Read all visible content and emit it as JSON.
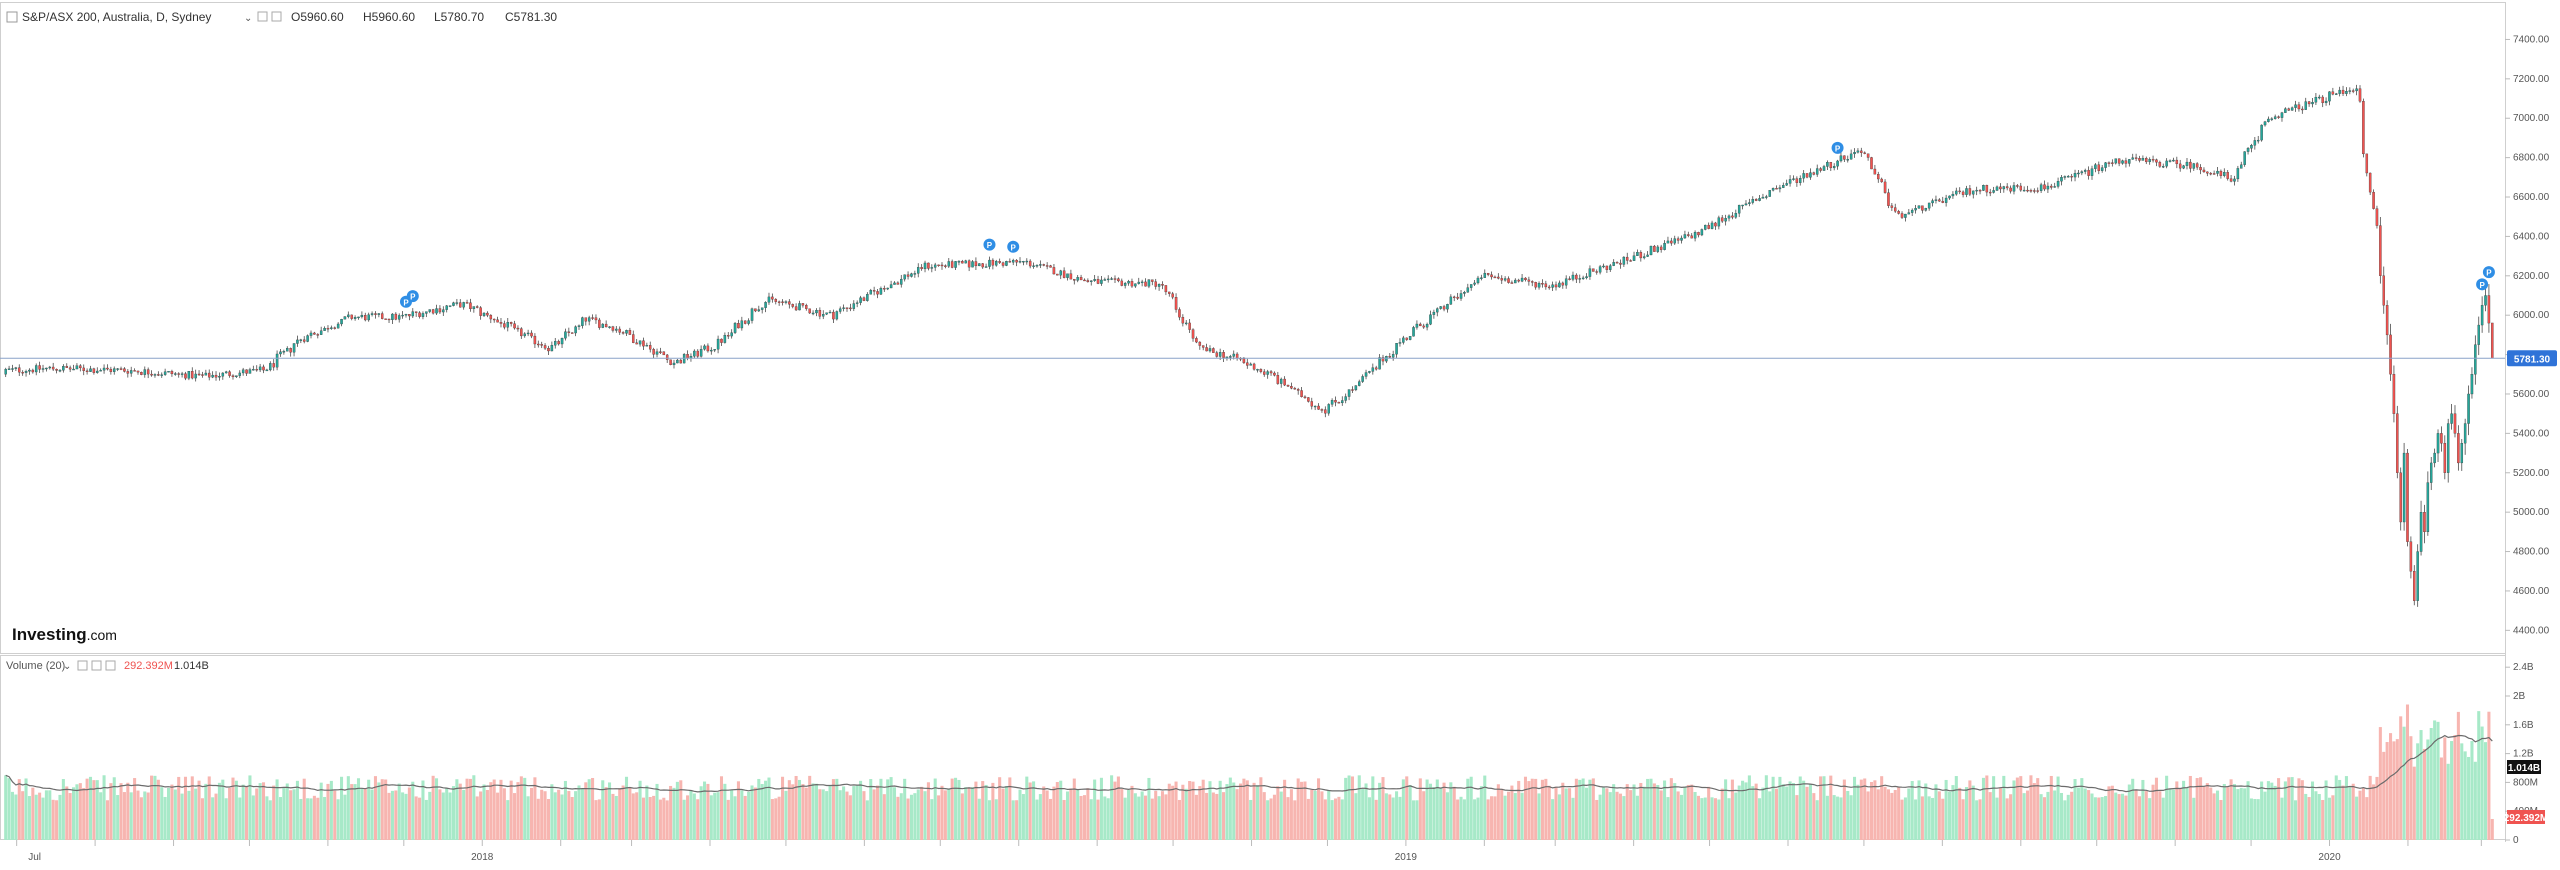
{
  "chart_data": [
    {
      "type": "candlestick",
      "title": "S&P/ASX 200, Australia, D, Sydney",
      "ohlc_last": {
        "o_label": "O5960.60",
        "h_label": "H5960.60",
        "l_label": "L5780.70",
        "c_label": "C5781.30"
      },
      "last_price_label": "5781.30",
      "last_price": 5781.3,
      "y_ticks": [
        "7400.00",
        "7200.00",
        "7000.00",
        "6800.00",
        "6600.00",
        "6400.00",
        "6200.00",
        "6000.00",
        "5800.00",
        "5600.00",
        "5400.00",
        "5200.00",
        "5000.00",
        "4800.00",
        "4600.00",
        "4400.00"
      ],
      "ylim": [
        4290,
        7580
      ],
      "x_ticks": [
        "Jul",
        "2018",
        "2019",
        "2020"
      ],
      "date_range": [
        "2017-06-26",
        "2020-03-06"
      ],
      "trend": [
        [
          "2017-06-26",
          5720
        ],
        [
          "2017-07-15",
          5730
        ],
        [
          "2017-08-15",
          5720
        ],
        [
          "2017-09-15",
          5690
        ],
        [
          "2017-10-10",
          5720
        ],
        [
          "2017-10-25",
          5880
        ],
        [
          "2017-11-15",
          5990
        ],
        [
          "2017-12-05",
          5990
        ],
        [
          "2017-12-31",
          6060
        ],
        [
          "2018-02-05",
          5830
        ],
        [
          "2018-02-20",
          5980
        ],
        [
          "2018-03-05",
          5930
        ],
        [
          "2018-03-28",
          5760
        ],
        [
          "2018-04-15",
          5850
        ],
        [
          "2018-05-05",
          6080
        ],
        [
          "2018-06-01",
          6000
        ],
        [
          "2018-07-10",
          6250
        ],
        [
          "2018-08-20",
          6270
        ],
        [
          "2018-09-15",
          6170
        ],
        [
          "2018-10-15",
          6160
        ],
        [
          "2018-10-31",
          5830
        ],
        [
          "2018-11-15",
          5780
        ],
        [
          "2018-11-30",
          5690
        ],
        [
          "2018-12-21",
          5520
        ],
        [
          "2018-12-31",
          5600
        ],
        [
          "2019-01-25",
          5900
        ],
        [
          "2019-02-25",
          6200
        ],
        [
          "2019-03-25",
          6150
        ],
        [
          "2019-04-25",
          6280
        ],
        [
          "2019-05-25",
          6420
        ],
        [
          "2019-06-25",
          6640
        ],
        [
          "2019-07-31",
          6840
        ],
        [
          "2019-08-15",
          6500
        ],
        [
          "2019-09-15",
          6640
        ],
        [
          "2019-10-15",
          6650
        ],
        [
          "2019-11-15",
          6790
        ],
        [
          "2019-12-15",
          6760
        ],
        [
          "2019-12-31",
          6690
        ],
        [
          "2020-01-15",
          7000
        ],
        [
          "2020-02-20",
          7160
        ],
        [
          "2020-02-28",
          6450
        ],
        [
          "2020-03-01",
          6200
        ]
      ],
      "volume_panel": {
        "title": "Volume (20)",
        "last_volume_label": "292.392M",
        "ma_label": "1.014B",
        "y_ticks": [
          "2.4B",
          "2B",
          "1.6B",
          "1.2B",
          "800M",
          "400M",
          "0"
        ],
        "ylim": [
          0,
          2.5
        ]
      },
      "marker_label": "P",
      "colors": {
        "up": "#26a69a",
        "down": "#ef5350",
        "vol_up": "#a7e9c8",
        "vol_down": "#f7b5b0",
        "marker": "#2f8ee5",
        "tag": "#2f73d8",
        "grid": "#d6d6d6"
      }
    }
  ],
  "watermark": {
    "brand": "Investing",
    "suffix": ".com"
  }
}
